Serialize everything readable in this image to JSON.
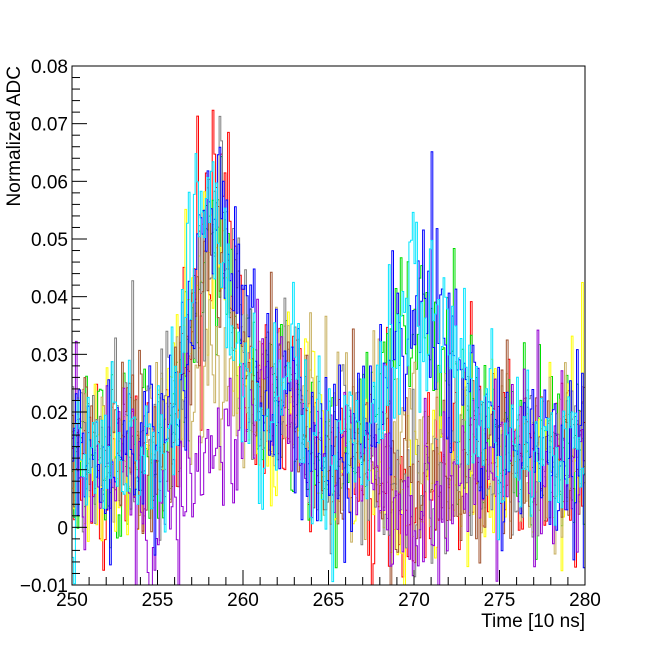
{
  "chart_data": {
    "type": "line",
    "style": "step histograms, many overlaid noisy ADC waveforms",
    "title": "",
    "xlabel": "Time [10 ns]",
    "ylabel": "Normalized ADC",
    "xlim": [
      250,
      280
    ],
    "ylim": [
      -0.01,
      0.08
    ],
    "x_ticks": [
      "250",
      "255",
      "260",
      "265",
      "270",
      "275",
      "280"
    ],
    "y_ticks": [
      "−0.01",
      "0",
      "0.01",
      "0.02",
      "0.03",
      "0.04",
      "0.05",
      "0.06",
      "0.07",
      "0.08"
    ],
    "grid": false,
    "legend": "none",
    "bin_width": 0.1,
    "series": [
      {
        "color": "#ff0000",
        "baseline": 0.012,
        "features": [
          [
            258.5,
            0.045,
            1.8
          ],
          [
            262.5,
            0.012,
            1.2
          ],
          [
            269.5,
            -0.008,
            2.0
          ]
        ]
      },
      {
        "color": "#00dd00",
        "baseline": 0.012,
        "features": [
          [
            258.5,
            0.04,
            1.8
          ],
          [
            262.5,
            0.012,
            1.2
          ],
          [
            270.0,
            0.025,
            2.5
          ]
        ]
      },
      {
        "color": "#ffff00",
        "baseline": 0.013,
        "features": [
          [
            258.0,
            0.035,
            2.0
          ],
          [
            263.0,
            0.012,
            1.3
          ],
          [
            270.0,
            -0.008,
            2.0
          ]
        ]
      },
      {
        "color": "#c8b060",
        "baseline": 0.014,
        "features": [
          [
            258.5,
            0.01,
            2.5
          ],
          [
            263.0,
            0.016,
            1.5
          ],
          [
            270.0,
            0.0,
            2.0
          ]
        ]
      },
      {
        "color": "#808080",
        "baseline": 0.013,
        "features": [
          [
            258.5,
            0.045,
            1.7
          ],
          [
            262.5,
            0.012,
            1.2
          ],
          [
            270.0,
            -0.008,
            2.0
          ]
        ]
      },
      {
        "color": "#a0522d",
        "baseline": 0.012,
        "features": [
          [
            258.5,
            0.04,
            1.7
          ],
          [
            262.0,
            0.014,
            1.2
          ],
          [
            270.0,
            -0.008,
            2.0
          ]
        ]
      },
      {
        "color": "#9400d3",
        "baseline": 0.012,
        "features": [
          [
            254.8,
            -0.012,
            1.5
          ],
          [
            261.5,
            0.014,
            1.5
          ],
          [
            270.0,
            -0.01,
            2.2
          ]
        ]
      },
      {
        "color": "#0000ff",
        "baseline": 0.012,
        "features": [
          [
            258.5,
            0.045,
            1.8
          ],
          [
            262.5,
            0.012,
            1.2
          ],
          [
            270.5,
            0.028,
            2.8
          ]
        ]
      },
      {
        "color": "#00e5ff",
        "baseline": 0.012,
        "features": [
          [
            258.0,
            0.045,
            1.8
          ],
          [
            262.5,
            0.012,
            1.2
          ],
          [
            270.5,
            0.028,
            2.8
          ]
        ]
      }
    ]
  }
}
